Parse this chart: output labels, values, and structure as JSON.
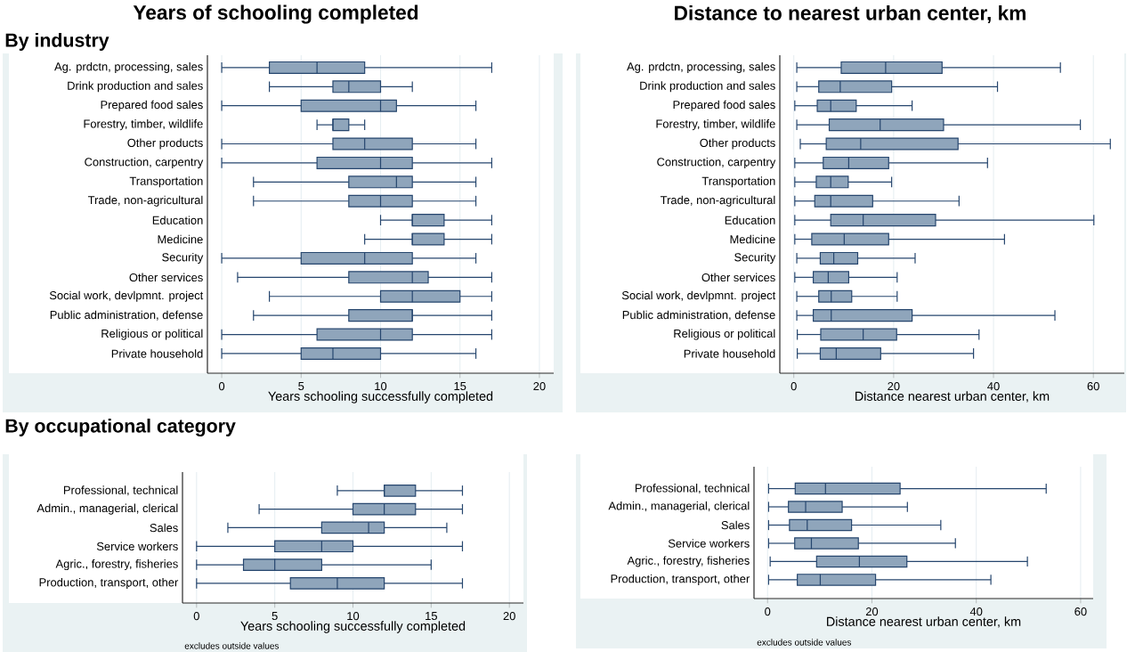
{
  "chart_data": [
    {
      "type": "box",
      "orientation": "horizontal",
      "title": "Years of schooling completed",
      "subtitle": "By industry",
      "xlabel": "Years schooling successfully completed",
      "categories": [
        "Ag. prdctn, processing, sales",
        "Drink production and sales",
        "Prepared food sales",
        "Forestry, timber, wildlife",
        "Other products",
        "Construction, carpentry",
        "Transportation",
        "Trade, non-agricultural",
        "Education",
        "Medicine",
        "Security",
        "Other services",
        "Social work, devlpmnt. project",
        "Public administration, defense",
        "Religious or political",
        "Private household"
      ],
      "boxes": [
        {
          "low": 0,
          "q1": 3,
          "median": 6,
          "q3": 9,
          "high": 17
        },
        {
          "low": 3,
          "q1": 7,
          "median": 8,
          "q3": 10,
          "high": 12
        },
        {
          "low": 0,
          "q1": 5,
          "median": 10,
          "q3": 11,
          "high": 16
        },
        {
          "low": 6,
          "q1": 7,
          "median": 7,
          "q3": 8,
          "high": 9
        },
        {
          "low": 0,
          "q1": 7,
          "median": 9,
          "q3": 12,
          "high": 16
        },
        {
          "low": 0,
          "q1": 6,
          "median": 10,
          "q3": 12,
          "high": 17
        },
        {
          "low": 2,
          "q1": 8,
          "median": 11,
          "q3": 12,
          "high": 16
        },
        {
          "low": 2,
          "q1": 8,
          "median": 10,
          "q3": 12,
          "high": 16
        },
        {
          "low": 10,
          "q1": 12,
          "median": 12,
          "q3": 14,
          "high": 17
        },
        {
          "low": 9,
          "q1": 12,
          "median": 12,
          "q3": 14,
          "high": 17
        },
        {
          "low": 0,
          "q1": 5,
          "median": 9,
          "q3": 12,
          "high": 16
        },
        {
          "low": 1,
          "q1": 8,
          "median": 12,
          "q3": 13,
          "high": 17
        },
        {
          "low": 3,
          "q1": 10,
          "median": 12,
          "q3": 15,
          "high": 17
        },
        {
          "low": 2,
          "q1": 8,
          "median": 12,
          "q3": 12,
          "high": 17
        },
        {
          "low": 0,
          "q1": 6,
          "median": 10,
          "q3": 12,
          "high": 17
        },
        {
          "low": 0,
          "q1": 5,
          "median": 7,
          "q3": 10,
          "high": 16
        }
      ],
      "color": "#8fa5bb",
      "xlim": [
        -0.9,
        20.9
      ],
      "xticks": [
        0,
        5,
        10,
        15,
        20
      ],
      "grid": "x"
    },
    {
      "type": "box",
      "orientation": "horizontal",
      "title": "Distance to nearest urban center, km",
      "xlabel": "Distance nearest urban center, km",
      "categories": [
        "Ag. prdctn, processing, sales",
        "Drink production and sales",
        "Prepared food sales",
        "Forestry, timber, wildlife",
        "Other products",
        "Construction, carpentry",
        "Transportation",
        "Trade, non-agricultural",
        "Education",
        "Medicine",
        "Security",
        "Other services",
        "Social work, devlpmnt. project",
        "Public administration, defense",
        "Religious or political",
        "Private household"
      ],
      "boxes": [
        {
          "low": 0.6,
          "q1": 9.5,
          "median": 18.4,
          "q3": 29.7,
          "high": 53.4
        },
        {
          "low": 0.6,
          "q1": 5.0,
          "median": 9.3,
          "q3": 19.6,
          "high": 40.8
        },
        {
          "low": 0.2,
          "q1": 4.7,
          "median": 7.4,
          "q3": 12.5,
          "high": 23.7
        },
        {
          "low": 0.6,
          "q1": 7.1,
          "median": 17.3,
          "q3": 30.0,
          "high": 57.4
        },
        {
          "low": 1.3,
          "q1": 6.5,
          "median": 13.4,
          "q3": 32.9,
          "high": 63.4
        },
        {
          "low": 0.2,
          "q1": 5.9,
          "median": 11.0,
          "q3": 19.0,
          "high": 38.8
        },
        {
          "low": 0.2,
          "q1": 4.5,
          "median": 7.4,
          "q3": 10.9,
          "high": 19.6
        },
        {
          "low": 0.2,
          "q1": 4.2,
          "median": 7.4,
          "q3": 15.8,
          "high": 33.1
        },
        {
          "low": 0.2,
          "q1": 7.4,
          "median": 13.9,
          "q3": 28.4,
          "high": 60.1
        },
        {
          "low": 0.2,
          "q1": 3.6,
          "median": 10.1,
          "q3": 19.0,
          "high": 42.2
        },
        {
          "low": 0.6,
          "q1": 5.3,
          "median": 8.0,
          "q3": 12.8,
          "high": 24.3
        },
        {
          "low": 0.2,
          "q1": 3.9,
          "median": 6.9,
          "q3": 11.0,
          "high": 20.7
        },
        {
          "low": 0.6,
          "q1": 5.0,
          "median": 7.5,
          "q3": 11.6,
          "high": 20.7
        },
        {
          "low": 0.6,
          "q1": 3.9,
          "median": 7.5,
          "q3": 23.7,
          "high": 52.3
        },
        {
          "low": 0.7,
          "q1": 5.4,
          "median": 13.9,
          "q3": 20.6,
          "high": 37.1
        },
        {
          "low": 0.7,
          "q1": 5.3,
          "median": 8.5,
          "q3": 17.4,
          "high": 36.0
        }
      ],
      "color": "#8fa5bb",
      "xlim": [
        -2.8,
        66.2
      ],
      "xticks": [
        0,
        20,
        40,
        60
      ],
      "grid": "x"
    },
    {
      "type": "box",
      "orientation": "horizontal",
      "subtitle": "By occupational category",
      "xlabel": "Years schooling successfully completed",
      "annotations": [
        "excludes outside values"
      ],
      "categories": [
        "Professional, technical",
        "Admin., managerial, clerical",
        "Sales",
        "Service workers",
        "Agric., forestry, fisheries",
        "Production, transport, other"
      ],
      "boxes": [
        {
          "low": 9,
          "q1": 12,
          "median": 12,
          "q3": 14,
          "high": 17
        },
        {
          "low": 4,
          "q1": 10,
          "median": 12,
          "q3": 14,
          "high": 17
        },
        {
          "low": 2,
          "q1": 8,
          "median": 11,
          "q3": 12,
          "high": 16
        },
        {
          "low": 0,
          "q1": 5,
          "median": 8,
          "q3": 10,
          "high": 17
        },
        {
          "low": 0,
          "q1": 3,
          "median": 5,
          "q3": 8,
          "high": 15
        },
        {
          "low": 0,
          "q1": 6,
          "median": 9,
          "q3": 12,
          "high": 17
        }
      ],
      "color": "#8fa5bb",
      "xlim": [
        -0.9,
        20.9
      ],
      "xticks": [
        0,
        5,
        10,
        15,
        20
      ],
      "grid": "x"
    },
    {
      "type": "box",
      "orientation": "horizontal",
      "xlabel": "Distance nearest urban center, km",
      "annotations": [
        "excludes outside values"
      ],
      "categories": [
        "Professional, technical",
        "Admin., managerial, clerical",
        "Sales",
        "Service workers",
        "Agric., forestry, fisheries",
        "Production, transport, other"
      ],
      "boxes": [
        {
          "low": 0.2,
          "q1": 5.3,
          "median": 11.1,
          "q3": 25.4,
          "high": 53.4
        },
        {
          "low": 0.2,
          "q1": 4.0,
          "median": 7.3,
          "q3": 14.3,
          "high": 26.8
        },
        {
          "low": 0.2,
          "q1": 4.2,
          "median": 7.6,
          "q3": 16.1,
          "high": 33.2
        },
        {
          "low": 0.2,
          "q1": 5.2,
          "median": 8.4,
          "q3": 17.4,
          "high": 36.0
        },
        {
          "low": 0.5,
          "q1": 9.4,
          "median": 17.6,
          "q3": 26.7,
          "high": 49.8
        },
        {
          "low": 0.2,
          "q1": 5.7,
          "median": 10.1,
          "q3": 20.7,
          "high": 42.8
        }
      ],
      "color": "#8fa5bb",
      "xlim": [
        -2.6,
        62.4
      ],
      "xticks": [
        0,
        20,
        40,
        60
      ],
      "grid": "x"
    }
  ]
}
